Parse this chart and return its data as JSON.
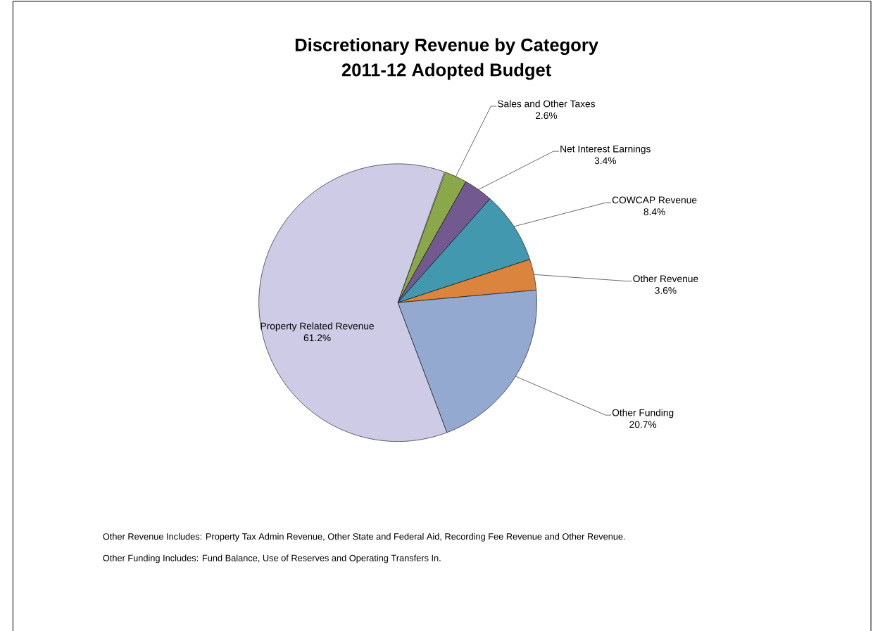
{
  "chart_data": {
    "type": "pie",
    "title": "Discretionary Revenue by Category",
    "subtitle": "2011-12 Adopted Budget",
    "categories": [
      "Sales and Other Taxes",
      "Net Interest Earnings",
      "COWCAP Revenue",
      "Other Revenue",
      "Other Funding",
      "Property Related Revenue"
    ],
    "values": [
      2.6,
      3.4,
      8.4,
      3.6,
      20.7,
      61.2
    ],
    "value_labels": [
      "2.6%",
      "3.4%",
      "8.4%",
      "3.6%",
      "20.7%",
      "61.2%"
    ],
    "colors": [
      "#8aa84a",
      "#725a91",
      "#4198af",
      "#db843d",
      "#93a9cf",
      "#cdcbe6"
    ],
    "annotations": [
      "Other Revenue Includes:  Property Tax Admin Revenue, Other State and Federal Aid, Recording Fee Revenue and Other Revenue.",
      "Other Funding Includes:  Fund Balance, Use of Reserves and Operating Transfers In."
    ]
  }
}
